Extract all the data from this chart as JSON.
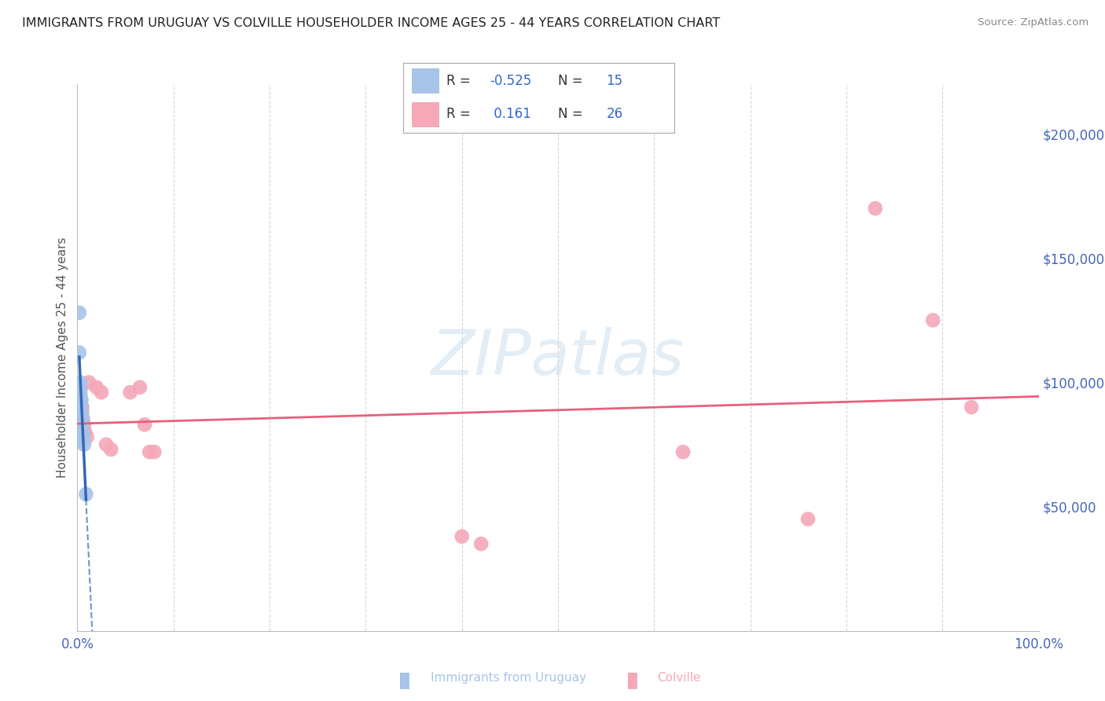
{
  "title": "IMMIGRANTS FROM URUGUAY VS COLVILLE HOUSEHOLDER INCOME AGES 25 - 44 YEARS CORRELATION CHART",
  "source": "Source: ZipAtlas.com",
  "ylabel": "Householder Income Ages 25 - 44 years",
  "xlim": [
    0,
    1.0
  ],
  "ylim": [
    0,
    220000
  ],
  "xtick_positions": [
    0.0,
    0.1,
    0.2,
    0.3,
    0.4,
    0.5,
    0.6,
    0.7,
    0.8,
    0.9,
    1.0
  ],
  "xtick_labels": [
    "0.0%",
    "",
    "",
    "",
    "",
    "",
    "",
    "",
    "",
    "",
    "100.0%"
  ],
  "ytick_positions": [
    0,
    50000,
    100000,
    150000,
    200000
  ],
  "ytick_labels": [
    "",
    "$50,000",
    "$100,000",
    "$150,000",
    "$200,000"
  ],
  "watermark": "ZIPatlas",
  "uruguay_color": "#a8c4e8",
  "colville_color": "#f4a8b8",
  "uruguay_line_color": "#3366bb",
  "colville_line_color": "#e8607a",
  "legend_r1_label": "R = -0.525  N = 15",
  "legend_r2_label": "R =  0.161  N = 26",
  "uruguay_scatter": [
    [
      0.002,
      128000
    ],
    [
      0.002,
      112000
    ],
    [
      0.003,
      100000
    ],
    [
      0.003,
      97000
    ],
    [
      0.003,
      95000
    ],
    [
      0.004,
      93000
    ],
    [
      0.004,
      91000
    ],
    [
      0.004,
      88000
    ],
    [
      0.005,
      86000
    ],
    [
      0.005,
      84000
    ],
    [
      0.005,
      82000
    ],
    [
      0.006,
      79000
    ],
    [
      0.006,
      77000
    ],
    [
      0.007,
      75000
    ],
    [
      0.009,
      55000
    ]
  ],
  "colville_scatter": [
    [
      0.003,
      97000
    ],
    [
      0.003,
      95000
    ],
    [
      0.004,
      93000
    ],
    [
      0.005,
      90000
    ],
    [
      0.005,
      88000
    ],
    [
      0.006,
      85000
    ],
    [
      0.007,
      83000
    ],
    [
      0.008,
      80000
    ],
    [
      0.01,
      78000
    ],
    [
      0.012,
      100000
    ],
    [
      0.02,
      98000
    ],
    [
      0.025,
      96000
    ],
    [
      0.03,
      75000
    ],
    [
      0.035,
      73000
    ],
    [
      0.055,
      96000
    ],
    [
      0.065,
      98000
    ],
    [
      0.07,
      83000
    ],
    [
      0.075,
      72000
    ],
    [
      0.08,
      72000
    ],
    [
      0.4,
      38000
    ],
    [
      0.42,
      35000
    ],
    [
      0.63,
      72000
    ],
    [
      0.76,
      45000
    ],
    [
      0.83,
      170000
    ],
    [
      0.89,
      125000
    ],
    [
      0.93,
      90000
    ]
  ],
  "background_color": "#ffffff",
  "grid_color": "#cccccc"
}
